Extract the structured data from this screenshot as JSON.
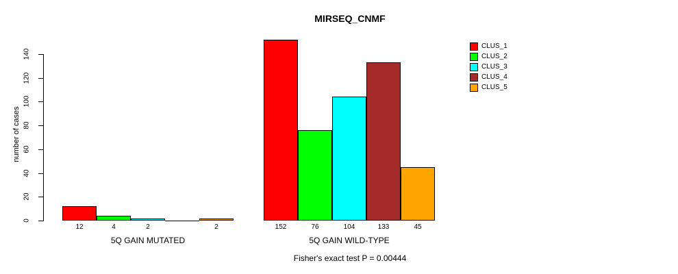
{
  "chart_data": {
    "type": "bar",
    "title": "MIRSEQ_CNMF",
    "ylabel": "number of cases",
    "ylim": [
      0,
      140
    ],
    "yticks": [
      0,
      20,
      40,
      60,
      80,
      100,
      120,
      140
    ],
    "grid": false,
    "legend_position": "top-right-outside-bars",
    "series_names": [
      "CLUS_1",
      "CLUS_2",
      "CLUS_3",
      "CLUS_4",
      "CLUS_5"
    ],
    "colors": [
      "#FF0000",
      "#00FF00",
      "#00FFFF",
      "#A52A2A",
      "#FFA500"
    ],
    "groups": [
      {
        "label": "5Q GAIN MUTATED",
        "values": [
          12,
          4,
          2,
          0,
          2
        ]
      },
      {
        "label": "5Q GAIN WILD-TYPE",
        "values": [
          152,
          76,
          104,
          133,
          45
        ]
      }
    ],
    "bar_value_labels_note": "value labels shown under each bar; zero-valued bars have no label",
    "footer": "Fisher's exact test P = 0.00444"
  }
}
